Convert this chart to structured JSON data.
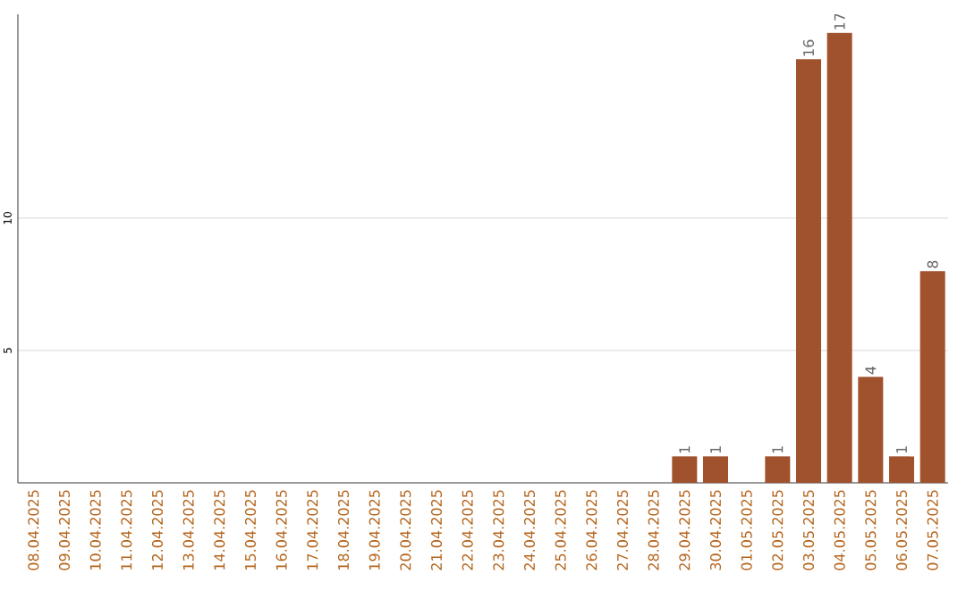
{
  "chart_data": {
    "type": "bar",
    "categories": [
      "08.04.2025",
      "09.04.2025",
      "10.04.2025",
      "11.04.2025",
      "12.04.2025",
      "13.04.2025",
      "14.04.2025",
      "15.04.2025",
      "16.04.2025",
      "17.04.2025",
      "18.04.2025",
      "19.04.2025",
      "20.04.2025",
      "21.04.2025",
      "22.04.2025",
      "23.04.2025",
      "24.04.2025",
      "25.04.2025",
      "26.04.2025",
      "27.04.2025",
      "28.04.2025",
      "29.04.2025",
      "30.04.2025",
      "01.05.2025",
      "02.05.2025",
      "03.05.2025",
      "04.05.2025",
      "05.05.2025",
      "06.05.2025",
      "07.05.2025"
    ],
    "values": [
      0,
      0,
      0,
      0,
      0,
      0,
      0,
      0,
      0,
      0,
      0,
      0,
      0,
      0,
      0,
      0,
      0,
      0,
      0,
      0,
      0,
      1,
      1,
      0,
      1,
      16,
      17,
      4,
      1,
      8
    ],
    "value_labels": [
      null,
      null,
      null,
      null,
      null,
      null,
      null,
      null,
      null,
      null,
      null,
      null,
      null,
      null,
      null,
      null,
      null,
      null,
      null,
      null,
      null,
      "1",
      "1",
      null,
      "1",
      "16",
      "17",
      "4",
      "1",
      "8"
    ],
    "color": "#a0522d",
    "ylim": [
      0,
      17.7
    ],
    "yticks": [
      5,
      10
    ],
    "grid": "y"
  }
}
